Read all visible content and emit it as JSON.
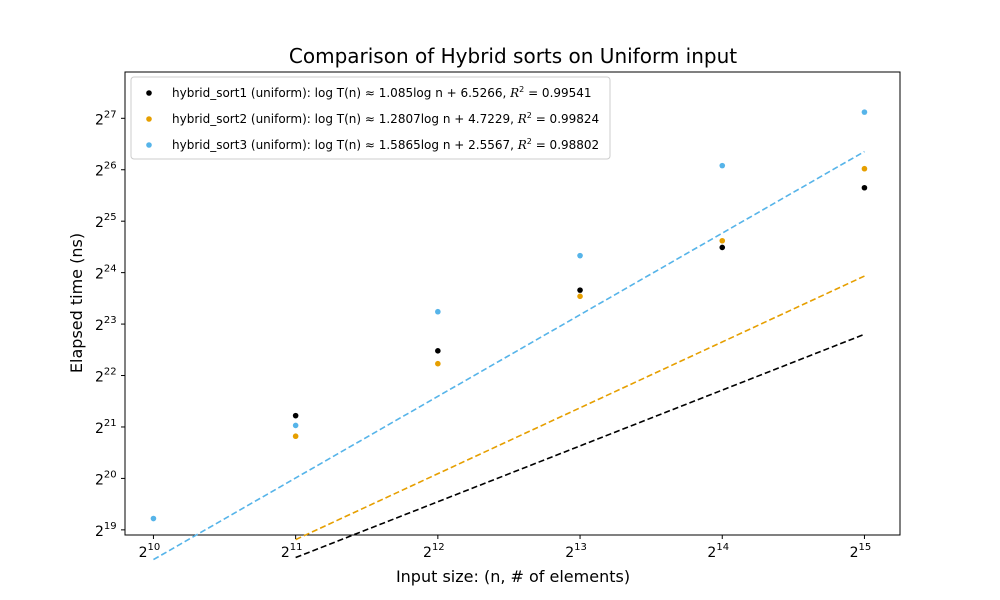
{
  "chart_data": {
    "type": "scatter",
    "title": "Comparison of Hybrid sorts on Uniform input",
    "xlabel": "Input size: (n, # of elements)",
    "ylabel": "Elapsed time (ns)",
    "x_scale": "log2",
    "y_scale": "log2",
    "xlim": [
      9.8,
      15.25
    ],
    "ylim": [
      18.9,
      27.9
    ],
    "x_ticks": [
      10,
      11,
      12,
      13,
      14,
      15
    ],
    "y_ticks": [
      19,
      20,
      21,
      22,
      23,
      24,
      25,
      26,
      27
    ],
    "tick_base": "2",
    "grid": false,
    "legend_position": "top-left",
    "series": [
      {
        "name": "hybrid_sort1 (uniform)",
        "color": "#000000",
        "equation": {
          "text": "log T(n) ≈ 1.085log n + 6.5266, ",
          "r2_label": "R",
          "r2_exp": "2",
          "r2_value": " = 0.99541"
        },
        "fit": {
          "slope": 1.085,
          "intercept": 6.5266,
          "x_range": [
            11,
            15
          ]
        },
        "points": [
          {
            "x": 11,
            "y": 21.22
          },
          {
            "x": 12,
            "y": 22.48
          },
          {
            "x": 13,
            "y": 23.66
          },
          {
            "x": 14,
            "y": 24.49
          },
          {
            "x": 15,
            "y": 25.65
          }
        ]
      },
      {
        "name": "hybrid_sort2 (uniform)",
        "color": "#E69F00",
        "equation": {
          "text": "log T(n) ≈ 1.2807log n + 4.7229, ",
          "r2_label": "R",
          "r2_exp": "2",
          "r2_value": " = 0.99824"
        },
        "fit": {
          "slope": 1.2807,
          "intercept": 4.7229,
          "x_range": [
            11,
            15
          ]
        },
        "points": [
          {
            "x": 11,
            "y": 20.82
          },
          {
            "x": 12,
            "y": 22.23
          },
          {
            "x": 13,
            "y": 23.54
          },
          {
            "x": 14,
            "y": 24.62
          },
          {
            "x": 15,
            "y": 26.02
          }
        ]
      },
      {
        "name": "hybrid_sort3 (uniform)",
        "color": "#56B4E9",
        "equation": {
          "text": "log T(n) ≈ 1.5865log n + 2.5567, ",
          "r2_label": "R",
          "r2_exp": "2",
          "r2_value": " = 0.98802"
        },
        "fit": {
          "slope": 1.5865,
          "intercept": 2.5567,
          "x_range": [
            10,
            15
          ]
        },
        "points": [
          {
            "x": 10,
            "y": 19.22
          },
          {
            "x": 11,
            "y": 21.03
          },
          {
            "x": 12,
            "y": 23.24
          },
          {
            "x": 13,
            "y": 24.33
          },
          {
            "x": 14,
            "y": 26.08
          },
          {
            "x": 15,
            "y": 27.12
          }
        ]
      }
    ]
  }
}
